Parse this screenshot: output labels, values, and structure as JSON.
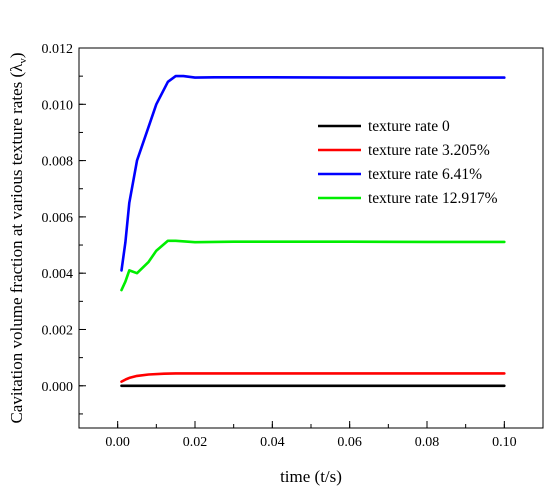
{
  "chart_data": {
    "type": "line",
    "title": "",
    "xlabel": "time (t/s)",
    "ylabel": "Cavitation volume fraction at various texture rates (λ",
    "ylabel_subscript": "v",
    "ylabel_suffix": ")",
    "xlim": [
      -0.01,
      0.11
    ],
    "ylim": [
      -0.0015,
      0.012
    ],
    "x_ticks": [
      0.0,
      0.02,
      0.04,
      0.06,
      0.08,
      0.1
    ],
    "x_tick_labels": [
      "0.00",
      "0.02",
      "0.04",
      "0.06",
      "0.08",
      "0.10"
    ],
    "y_ticks": [
      0.0,
      0.002,
      0.004,
      0.006,
      0.008,
      0.01,
      0.012
    ],
    "y_tick_labels": [
      "0.000",
      "0.002",
      "0.004",
      "0.006",
      "0.008",
      "0.010",
      "0.012"
    ],
    "grid": false,
    "legend_position": "top-right",
    "series": [
      {
        "name": "texture rate 0",
        "color": "#000000",
        "x": [
          0.001,
          0.1
        ],
        "y": [
          0.0,
          0.0
        ]
      },
      {
        "name": "texture rate 3.205%",
        "color": "#ff0000",
        "x": [
          0.001,
          0.002,
          0.003,
          0.005,
          0.008,
          0.012,
          0.015,
          0.02,
          0.04,
          0.06,
          0.08,
          0.1
        ],
        "y": [
          0.00015,
          0.00022,
          0.00028,
          0.00035,
          0.0004,
          0.00043,
          0.00044,
          0.00044,
          0.00044,
          0.00044,
          0.00044,
          0.00044
        ]
      },
      {
        "name": "texture rate 6.41%",
        "color": "#0000ff",
        "x": [
          0.001,
          0.002,
          0.003,
          0.005,
          0.008,
          0.01,
          0.013,
          0.015,
          0.017,
          0.02,
          0.025,
          0.04,
          0.06,
          0.08,
          0.1
        ],
        "y": [
          0.0041,
          0.0051,
          0.0065,
          0.008,
          0.0092,
          0.01,
          0.0108,
          0.011,
          0.011,
          0.01095,
          0.01096,
          0.01096,
          0.01095,
          0.01095,
          0.01095
        ],
        "marker": "none"
      },
      {
        "name": "texture rate 12.917%",
        "color": "#00ee00",
        "x": [
          0.001,
          0.002,
          0.003,
          0.005,
          0.008,
          0.01,
          0.013,
          0.015,
          0.02,
          0.03,
          0.04,
          0.06,
          0.08,
          0.1
        ],
        "y": [
          0.0034,
          0.0037,
          0.0041,
          0.004,
          0.0044,
          0.0048,
          0.00515,
          0.00515,
          0.0051,
          0.00512,
          0.00512,
          0.00512,
          0.00511,
          0.00511
        ]
      }
    ]
  }
}
